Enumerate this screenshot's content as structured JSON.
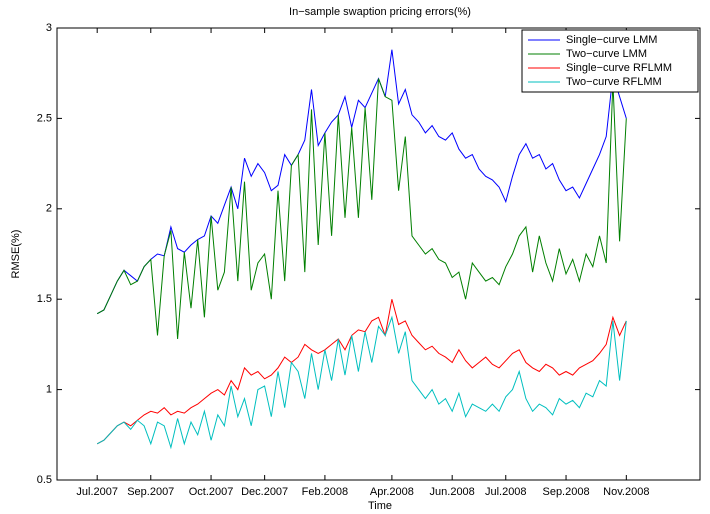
{
  "chart_data": {
    "type": "line",
    "title": "In−sample swaption pricing errors(%)",
    "xlabel": "Time",
    "ylabel": "RMSE(%)",
    "x": [
      0,
      1,
      2,
      3,
      4,
      5,
      6,
      7,
      8,
      9,
      10,
      11,
      12,
      13,
      14,
      15,
      16,
      17,
      18,
      19,
      20,
      21,
      22,
      23,
      24,
      25,
      26,
      27,
      28,
      29,
      30,
      31,
      32,
      33,
      34,
      35,
      36,
      37,
      38,
      39,
      40,
      41,
      42,
      43,
      44,
      45,
      46,
      47,
      48,
      49,
      50,
      51,
      52,
      53,
      54,
      55,
      56,
      57,
      58,
      59,
      60,
      61,
      62,
      63,
      64,
      65,
      66,
      67,
      68,
      69,
      70,
      71,
      72,
      73,
      74,
      75,
      76,
      77,
      78,
      79
    ],
    "xlim": [
      -6,
      90
    ],
    "xticks": [
      {
        "value": 0,
        "label": "Jul.2007"
      },
      {
        "value": 8,
        "label": "Sep.2007"
      },
      {
        "value": 17,
        "label": "Oct.2007"
      },
      {
        "value": 25,
        "label": "Dec.2007"
      },
      {
        "value": 34,
        "label": "Feb.2008"
      },
      {
        "value": 44,
        "label": "Apr.2008"
      },
      {
        "value": 53,
        "label": "Jun.2008"
      },
      {
        "value": 61,
        "label": "Jul.2008"
      },
      {
        "value": 70,
        "label": "Sep.2008"
      },
      {
        "value": 79,
        "label": "Nov.2008"
      }
    ],
    "ylim": [
      0.5,
      3
    ],
    "yticks": [
      0.5,
      1,
      1.5,
      2,
      2.5,
      3
    ],
    "legend": "upper right",
    "series": [
      {
        "name": "Single−curve LMM",
        "color": "#0000ff",
        "values": [
          1.42,
          1.44,
          1.52,
          1.6,
          1.66,
          1.63,
          1.6,
          1.68,
          1.72,
          1.75,
          1.74,
          1.9,
          1.78,
          1.76,
          1.8,
          1.83,
          1.85,
          1.96,
          1.92,
          2.02,
          2.12,
          2.0,
          2.28,
          2.18,
          2.25,
          2.2,
          2.1,
          2.13,
          2.3,
          2.24,
          2.3,
          2.38,
          2.66,
          2.35,
          2.42,
          2.48,
          2.52,
          2.62,
          2.45,
          2.6,
          2.56,
          2.64,
          2.72,
          2.62,
          2.88,
          2.58,
          2.66,
          2.52,
          2.48,
          2.42,
          2.46,
          2.4,
          2.38,
          2.42,
          2.33,
          2.28,
          2.3,
          2.22,
          2.18,
          2.16,
          2.12,
          2.04,
          2.18,
          2.3,
          2.36,
          2.28,
          2.3,
          2.22,
          2.25,
          2.16,
          2.1,
          2.12,
          2.06,
          2.14,
          2.22,
          2.3,
          2.4,
          2.74,
          2.62,
          2.5
        ]
      },
      {
        "name": "Two−curve LMM",
        "color": "#007f00",
        "values": [
          1.42,
          1.44,
          1.52,
          1.6,
          1.66,
          1.58,
          1.6,
          1.68,
          1.72,
          1.3,
          1.74,
          1.88,
          1.28,
          1.76,
          1.45,
          1.83,
          1.4,
          1.96,
          1.55,
          1.65,
          2.12,
          1.6,
          2.15,
          1.55,
          1.7,
          1.75,
          1.5,
          2.1,
          1.6,
          2.24,
          2.3,
          1.65,
          2.55,
          1.8,
          2.42,
          1.85,
          2.52,
          1.95,
          2.45,
          1.95,
          2.56,
          2.05,
          2.72,
          2.62,
          2.6,
          2.1,
          2.4,
          1.85,
          1.8,
          1.75,
          1.78,
          1.72,
          1.7,
          1.62,
          1.65,
          1.5,
          1.7,
          1.65,
          1.6,
          1.62,
          1.58,
          1.68,
          1.75,
          1.85,
          1.9,
          1.65,
          1.85,
          1.7,
          1.6,
          1.78,
          1.64,
          1.72,
          1.6,
          1.75,
          1.68,
          1.85,
          1.7,
          2.7,
          1.82,
          2.5
        ]
      },
      {
        "name": "Single−curve RFLMM",
        "color": "#ff0000",
        "values": [
          0.7,
          0.72,
          0.76,
          0.8,
          0.82,
          0.8,
          0.83,
          0.86,
          0.88,
          0.87,
          0.9,
          0.86,
          0.88,
          0.87,
          0.9,
          0.92,
          0.95,
          0.98,
          1.0,
          0.97,
          1.05,
          1.0,
          1.12,
          1.08,
          1.1,
          1.06,
          1.08,
          1.12,
          1.18,
          1.15,
          1.18,
          1.25,
          1.22,
          1.2,
          1.22,
          1.25,
          1.28,
          1.22,
          1.3,
          1.33,
          1.32,
          1.38,
          1.4,
          1.3,
          1.5,
          1.36,
          1.38,
          1.3,
          1.26,
          1.22,
          1.24,
          1.2,
          1.18,
          1.15,
          1.22,
          1.16,
          1.12,
          1.15,
          1.18,
          1.14,
          1.12,
          1.16,
          1.2,
          1.22,
          1.15,
          1.12,
          1.1,
          1.14,
          1.12,
          1.08,
          1.1,
          1.08,
          1.12,
          1.14,
          1.16,
          1.2,
          1.25,
          1.4,
          1.3,
          1.38
        ]
      },
      {
        "name": "Two−curve RFLMM",
        "color": "#00bfbf",
        "values": [
          0.7,
          0.72,
          0.76,
          0.8,
          0.82,
          0.78,
          0.83,
          0.8,
          0.7,
          0.82,
          0.8,
          0.68,
          0.84,
          0.7,
          0.82,
          0.75,
          0.88,
          0.72,
          0.86,
          0.8,
          1.02,
          0.85,
          0.95,
          0.8,
          1.0,
          1.02,
          0.85,
          1.1,
          0.9,
          1.15,
          1.1,
          0.95,
          1.2,
          1.0,
          1.22,
          1.05,
          1.28,
          1.08,
          1.3,
          1.1,
          1.32,
          1.15,
          1.35,
          1.3,
          1.4,
          1.2,
          1.32,
          1.05,
          1.0,
          0.95,
          1.0,
          0.92,
          0.95,
          0.88,
          0.98,
          0.85,
          0.92,
          0.9,
          0.88,
          0.92,
          0.88,
          0.96,
          1.0,
          1.1,
          0.95,
          0.88,
          0.92,
          0.9,
          0.86,
          0.95,
          0.92,
          0.94,
          0.9,
          0.98,
          0.96,
          1.05,
          1.02,
          1.38,
          1.05,
          1.38
        ]
      }
    ]
  }
}
